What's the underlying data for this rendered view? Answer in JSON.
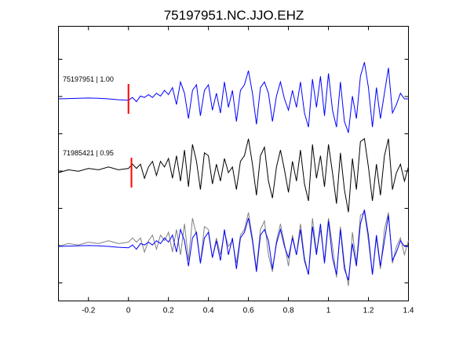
{
  "chart_data": {
    "type": "line",
    "title": "75197951.NC.JJO.EHZ",
    "xlim": [
      -0.35,
      1.4
    ],
    "x_ticks": [
      -0.2,
      0,
      0.2,
      0.4,
      0.6,
      0.8,
      1,
      1.2,
      1.4
    ],
    "x_tick_labels": [
      "-0.2",
      "0",
      "0.2",
      "0.4",
      "0.6",
      "0.8",
      "1",
      "1.2",
      "1.4"
    ],
    "y_ticks_count": 7,
    "grid": false,
    "traces": [
      {
        "label": "75197951 | 1.00",
        "color": "#0000ff",
        "pick_time": 0.0,
        "pick_color": "#ff0000",
        "x": [
          -0.35,
          -0.3,
          -0.25,
          -0.2,
          -0.15,
          -0.1,
          -0.05,
          0,
          0.02,
          0.04,
          0.06,
          0.08,
          0.1,
          0.12,
          0.14,
          0.16,
          0.18,
          0.2,
          0.22,
          0.24,
          0.26,
          0.28,
          0.3,
          0.32,
          0.34,
          0.36,
          0.38,
          0.4,
          0.42,
          0.44,
          0.46,
          0.48,
          0.5,
          0.52,
          0.54,
          0.56,
          0.58,
          0.6,
          0.62,
          0.64,
          0.66,
          0.68,
          0.7,
          0.72,
          0.74,
          0.76,
          0.78,
          0.8,
          0.82,
          0.84,
          0.86,
          0.88,
          0.9,
          0.92,
          0.94,
          0.96,
          0.98,
          1,
          1.02,
          1.04,
          1.06,
          1.08,
          1.1,
          1.12,
          1.14,
          1.16,
          1.18,
          1.2,
          1.22,
          1.24,
          1.26,
          1.28,
          1.3,
          1.32,
          1.34,
          1.36,
          1.38,
          1.4
        ],
        "y": [
          0,
          0.01,
          0.02,
          0.03,
          0.02,
          0.0,
          -0.03,
          -0.05,
          0.05,
          -0.1,
          0.1,
          0.05,
          0.15,
          0.05,
          0.2,
          0.1,
          0.3,
          0.15,
          0.4,
          -0.2,
          0.6,
          0.2,
          -0.7,
          0.3,
          0.5,
          -0.6,
          0.3,
          0.5,
          -0.4,
          0.2,
          -0.5,
          0.6,
          -0.3,
          0.3,
          -0.8,
          0.3,
          0.5,
          1.0,
          0.2,
          -0.9,
          0.4,
          0.6,
          0.2,
          -0.8,
          0.1,
          0.6,
          0.0,
          -0.4,
          0.3,
          -0.3,
          0.6,
          -0.5,
          -1.0,
          0.7,
          -0.3,
          0.8,
          -0.6,
          0.9,
          -0.4,
          -1.0,
          0.6,
          -0.8,
          -1.2,
          0.1,
          -0.7,
          0.8,
          1.3,
          0.4,
          -1.0,
          0.4,
          -0.7,
          0.2,
          1.1,
          -0.5,
          -0.2,
          0.2,
          0.0,
          0.0
        ]
      },
      {
        "label": "71985421 | 0.95",
        "color": "#000000",
        "pick_time": 0.015,
        "pick_color": "#ff0000",
        "x": [
          -0.35,
          -0.3,
          -0.25,
          -0.2,
          -0.15,
          -0.1,
          -0.05,
          0,
          0.02,
          0.04,
          0.06,
          0.08,
          0.1,
          0.12,
          0.14,
          0.16,
          0.18,
          0.2,
          0.22,
          0.24,
          0.26,
          0.28,
          0.3,
          0.32,
          0.34,
          0.36,
          0.38,
          0.4,
          0.42,
          0.44,
          0.46,
          0.48,
          0.5,
          0.52,
          0.54,
          0.56,
          0.58,
          0.6,
          0.62,
          0.64,
          0.66,
          0.68,
          0.7,
          0.72,
          0.74,
          0.76,
          0.78,
          0.8,
          0.82,
          0.84,
          0.86,
          0.88,
          0.9,
          0.92,
          0.94,
          0.96,
          0.98,
          1,
          1.02,
          1.04,
          1.06,
          1.08,
          1.1,
          1.12,
          1.14,
          1.16,
          1.18,
          1.2,
          1.22,
          1.24,
          1.26,
          1.28,
          1.3,
          1.32,
          1.34,
          1.36,
          1.38,
          1.4
        ],
        "y": [
          0,
          0.1,
          0.05,
          0.15,
          0.1,
          0.2,
          0.1,
          0.15,
          0.3,
          0.15,
          0.3,
          -0.2,
          0.2,
          0.4,
          -0.1,
          0.4,
          0.2,
          0.5,
          -0.2,
          0.6,
          -0.3,
          0.8,
          -0.5,
          1.0,
          0.4,
          -0.6,
          0.7,
          0.6,
          -0.4,
          0.3,
          -0.3,
          0.5,
          0.0,
          0.2,
          -0.6,
          0.4,
          0.6,
          1.2,
          0.3,
          -0.8,
          0.6,
          0.9,
          -0.3,
          -0.9,
          0.2,
          0.8,
          0.1,
          -0.7,
          0.4,
          -0.3,
          0.8,
          -0.4,
          -1.0,
          1.0,
          -0.2,
          0.6,
          -0.5,
          1.0,
          0.0,
          -1.1,
          0.7,
          -0.6,
          -1.4,
          0.5,
          -0.6,
          1.1,
          1.2,
          0.2,
          -1.0,
          0.3,
          -0.8,
          0.6,
          1.2,
          -0.6,
          0.0,
          0.3,
          -0.3,
          0.2
        ]
      }
    ],
    "overlay": {
      "description_free": true,
      "series": [
        {
          "color": "#808080",
          "source_trace": 1
        },
        {
          "color": "#0000ff",
          "source_trace": 0
        }
      ]
    }
  }
}
